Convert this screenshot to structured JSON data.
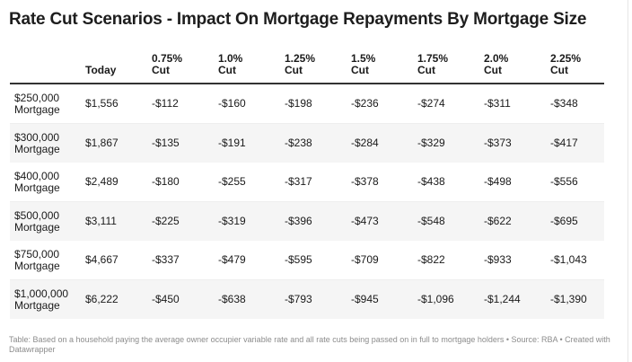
{
  "title": "Rate Cut Scenarios - Impact On Mortgage Repayments By Mortgage Size",
  "columns": [
    "",
    "Today",
    "0.75%\nCut",
    "1.0%\nCut",
    "1.25%\nCut",
    "1.5%\nCut",
    "1.75%\nCut",
    "2.0%\nCut",
    "2.25%\nCut"
  ],
  "rows": [
    [
      "$250,000\nMortgage",
      "$1,556",
      "-$112",
      "-$160",
      "-$198",
      "-$236",
      "-$274",
      "-$311",
      "-$348"
    ],
    [
      "$300,000\nMortgage",
      "$1,867",
      "-$135",
      "-$191",
      "-$238",
      "-$284",
      "-$329",
      "-$373",
      "-$417"
    ],
    [
      "$400,000\nMortgage",
      "$2,489",
      "-$180",
      "-$255",
      "-$317",
      "-$378",
      "-$438",
      "-$498",
      "-$556"
    ],
    [
      "$500,000\nMortgage",
      "$3,111",
      "-$225",
      "-$319",
      "-$396",
      "-$473",
      "-$548",
      "-$622",
      "-$695"
    ],
    [
      "$750,000\nMortgage",
      "$4,667",
      "-$337",
      "-$479",
      "-$595",
      "-$709",
      "-$822",
      "-$933",
      "-$1,043"
    ],
    [
      "$1,000,000\nMortgage",
      "$6,222",
      "-$450",
      "-$638",
      "-$793",
      "-$945",
      "-$1,096",
      "-$1,244",
      "-$1,390"
    ]
  ],
  "footer": "Table: Based on a household paying the average owner occupier variable rate and all rate cuts being passed on in full to mortgage holders • Source: RBA • Created with Datawrapper",
  "colors": {
    "stripe": "#f5f5f5",
    "header_rule": "#333333",
    "footer_text": "#8c8c8c"
  }
}
